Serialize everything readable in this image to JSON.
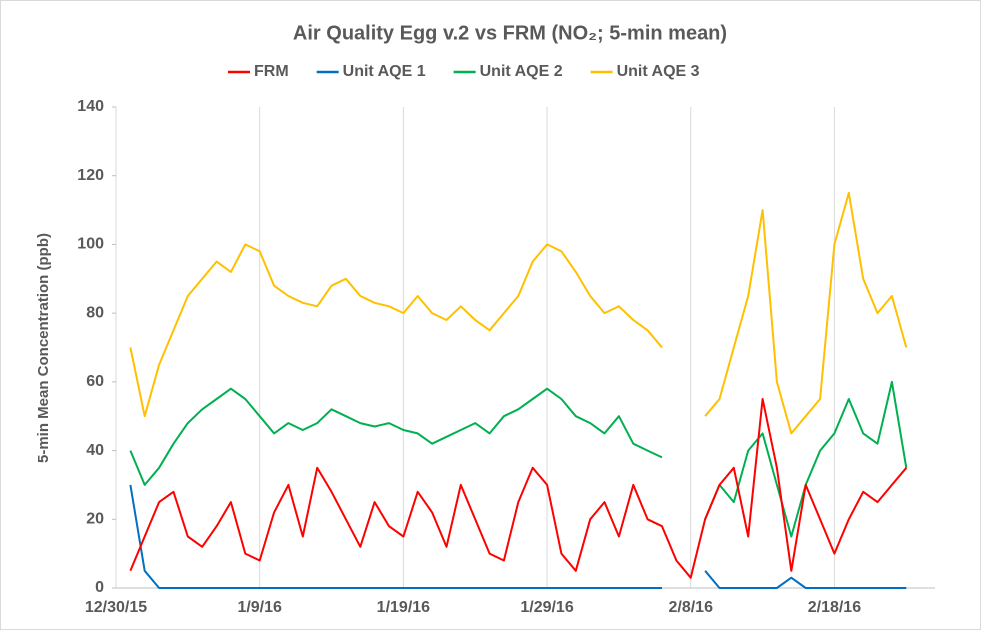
{
  "chart_data": {
    "type": "line",
    "title": "Air Quality Egg v.2 vs FRM (NO₂; 5-min mean)",
    "y_label": "5-min Mean Concentration (ppb)",
    "x": [
      "12/31/15",
      "1/1/16",
      "1/2/16",
      "1/3/16",
      "1/4/16",
      "1/5/16",
      "1/6/16",
      "1/7/16",
      "1/8/16",
      "1/9/16",
      "1/10/16",
      "1/11/16",
      "1/12/16",
      "1/13/16",
      "1/14/16",
      "1/15/16",
      "1/16/16",
      "1/17/16",
      "1/18/16",
      "1/19/16",
      "1/20/16",
      "1/21/16",
      "1/22/16",
      "1/23/16",
      "1/24/16",
      "1/25/16",
      "1/26/16",
      "1/27/16",
      "1/28/16",
      "1/29/16",
      "1/30/16",
      "1/31/16",
      "2/1/16",
      "2/2/16",
      "2/3/16",
      "2/4/16",
      "2/5/16",
      "2/6/16",
      "2/7/16",
      "2/8/16",
      "2/9/16",
      "2/10/16",
      "2/11/16",
      "2/12/16",
      "2/13/16",
      "2/14/16",
      "2/15/16",
      "2/16/16",
      "2/17/16",
      "2/18/16",
      "2/19/16",
      "2/20/16",
      "2/21/16",
      "2/22/16",
      "2/23/16"
    ],
    "series": [
      {
        "name": "FRM",
        "color": "#ff0000",
        "values": [
          5,
          15,
          25,
          28,
          15,
          12,
          18,
          25,
          10,
          8,
          22,
          30,
          15,
          35,
          28,
          20,
          12,
          25,
          18,
          15,
          28,
          22,
          12,
          30,
          20,
          10,
          8,
          25,
          35,
          30,
          10,
          5,
          20,
          25,
          15,
          30,
          20,
          18,
          8,
          3,
          20,
          30,
          35,
          15,
          55,
          35,
          5,
          30,
          20,
          10,
          20,
          28,
          25,
          30,
          35
        ]
      },
      {
        "name": "Unit AQE 1",
        "color": "#0070c0",
        "values": [
          30,
          5,
          0,
          0,
          0,
          0,
          0,
          0,
          0,
          0,
          0,
          0,
          0,
          0,
          0,
          0,
          0,
          0,
          0,
          0,
          0,
          0,
          0,
          0,
          0,
          0,
          0,
          0,
          0,
          0,
          0,
          0,
          0,
          0,
          0,
          0,
          0,
          0,
          null,
          null,
          5,
          0,
          0,
          0,
          0,
          0,
          3,
          0,
          0,
          0,
          0,
          0,
          0,
          0,
          0
        ]
      },
      {
        "name": "Unit AQE 2",
        "color": "#00b050",
        "values": [
          40,
          30,
          35,
          42,
          48,
          52,
          55,
          58,
          55,
          50,
          45,
          48,
          46,
          48,
          52,
          50,
          48,
          47,
          48,
          46,
          45,
          42,
          44,
          46,
          48,
          45,
          50,
          52,
          55,
          58,
          55,
          50,
          48,
          45,
          50,
          42,
          40,
          38,
          null,
          null,
          20,
          30,
          25,
          40,
          45,
          30,
          15,
          30,
          40,
          45,
          55,
          45,
          42,
          60,
          35
        ]
      },
      {
        "name": "Unit AQE 3",
        "color": "#ffc000",
        "values": [
          70,
          50,
          65,
          75,
          85,
          90,
          95,
          92,
          100,
          98,
          88,
          85,
          83,
          82,
          88,
          90,
          85,
          83,
          82,
          80,
          85,
          80,
          78,
          82,
          78,
          75,
          80,
          85,
          95,
          100,
          98,
          92,
          85,
          80,
          82,
          78,
          75,
          70,
          null,
          null,
          50,
          55,
          70,
          85,
          110,
          60,
          45,
          50,
          55,
          100,
          115,
          90,
          80,
          85,
          70
        ]
      }
    ],
    "xlim": [
      "12/30/15",
      "2/25/16"
    ],
    "xticks": [
      "12/30/15",
      "1/9/16",
      "1/19/16",
      "1/29/16",
      "2/8/16",
      "2/18/16"
    ],
    "ylim": [
      0,
      140
    ],
    "yticks": [
      0,
      20,
      40,
      60,
      80,
      100,
      120,
      140
    ],
    "grid": "x"
  }
}
